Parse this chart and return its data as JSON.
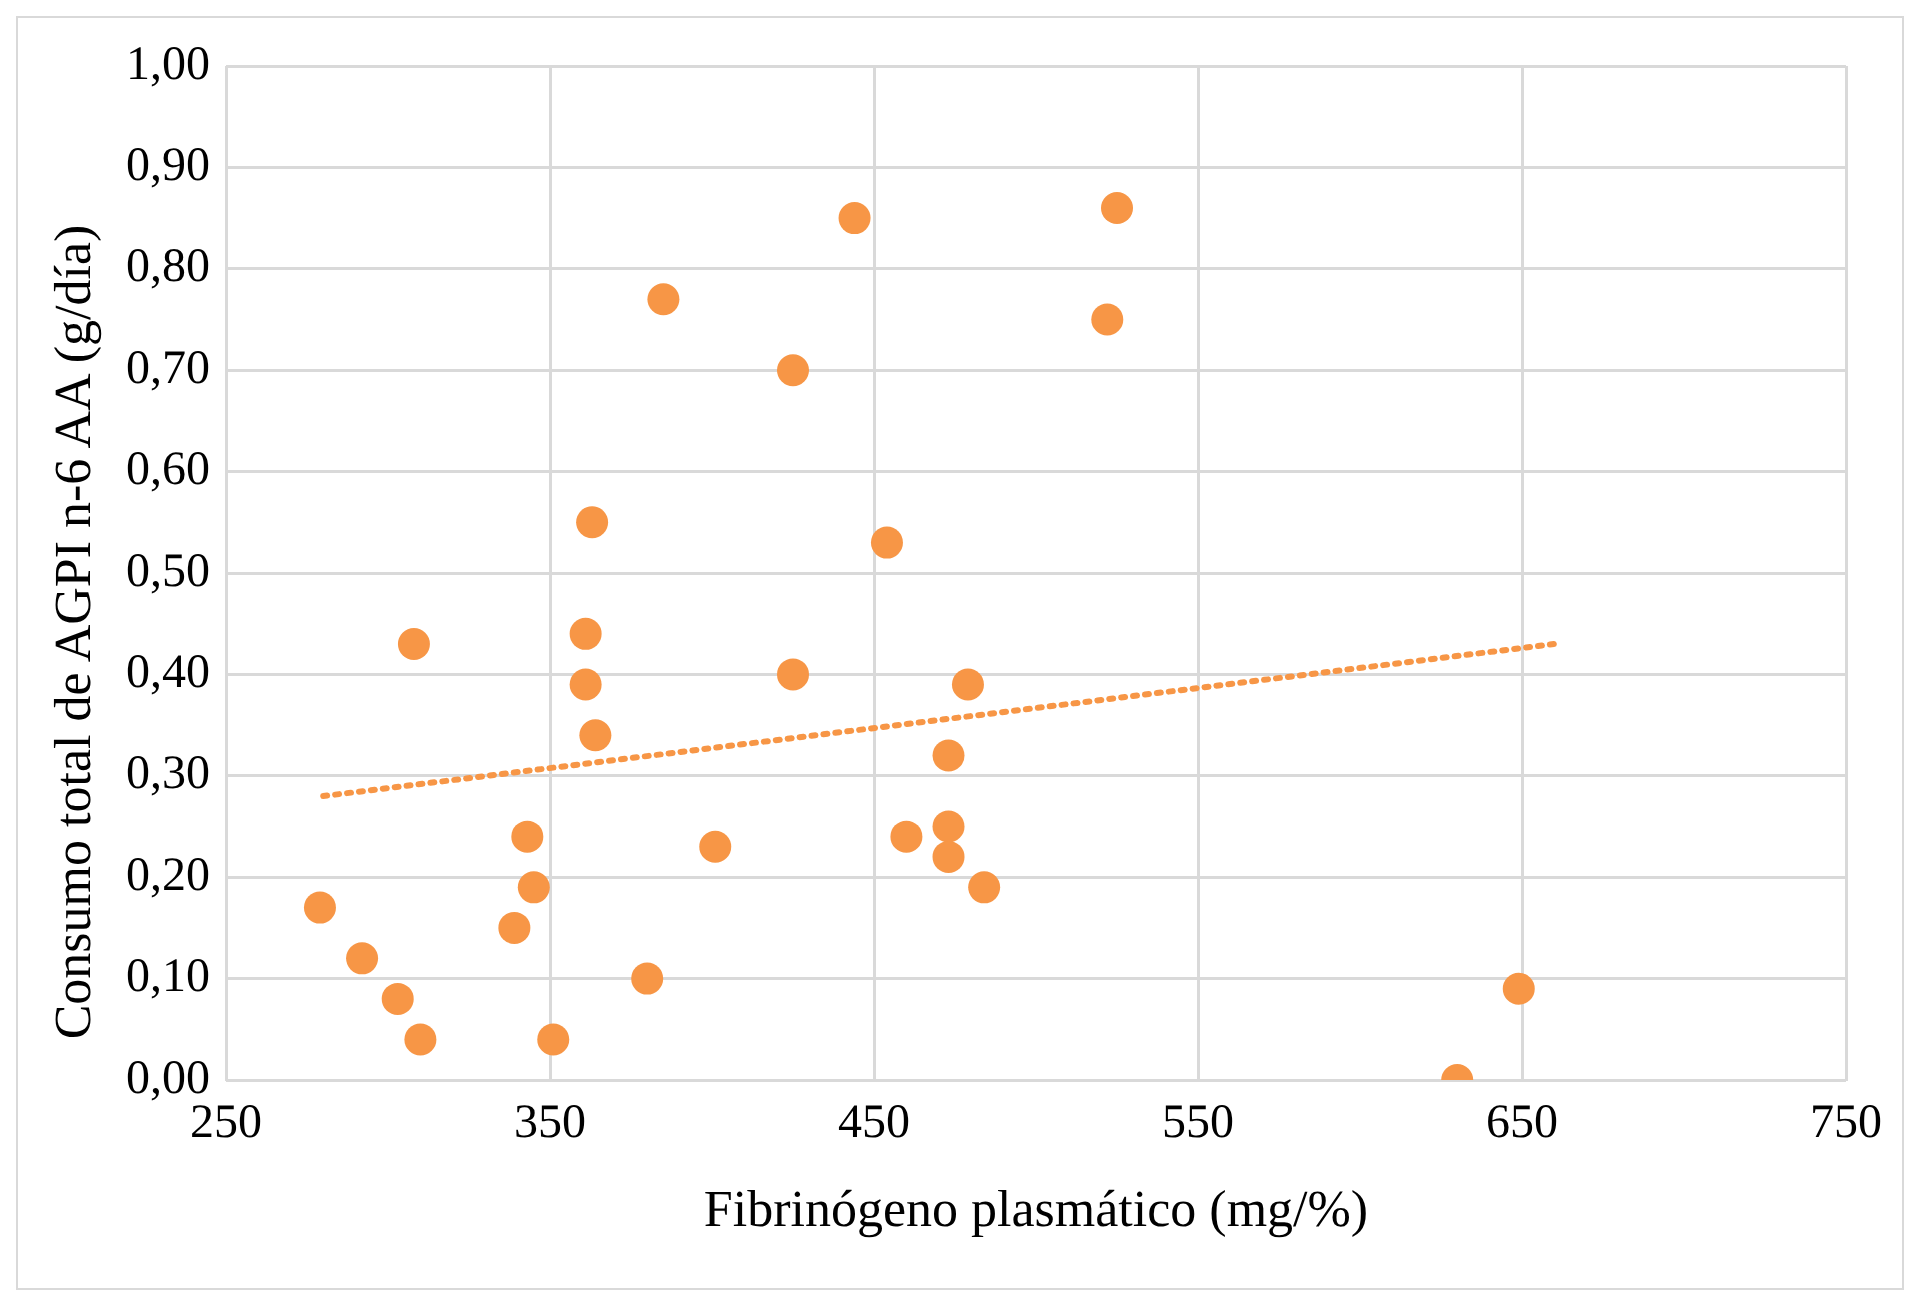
{
  "chart_data": {
    "type": "scatter",
    "xlabel": "Fibrinógeno plasmático (mg/%)",
    "ylabel": "Consumo total de AGPI n-6 AA (g/día)",
    "xlim": [
      250,
      750
    ],
    "xticks": [
      250,
      350,
      450,
      550,
      650,
      750
    ],
    "ylim": [
      0,
      1
    ],
    "yticks": [
      {
        "value": 0,
        "label": "0,00"
      },
      {
        "value": 0.1,
        "label": "0,10"
      },
      {
        "value": 0.2,
        "label": "0,20"
      },
      {
        "value": 0.3,
        "label": "0,30"
      },
      {
        "value": 0.4,
        "label": "0,40"
      },
      {
        "value": 0.5,
        "label": "0,50"
      },
      {
        "value": 0.6,
        "label": "0,60"
      },
      {
        "value": 0.7,
        "label": "0,70"
      },
      {
        "value": 0.8,
        "label": "0,80"
      },
      {
        "value": 0.9,
        "label": "0,90"
      },
      {
        "value": 1,
        "label": "1,00"
      }
    ],
    "grid": true,
    "legend": false,
    "series": [
      {
        "type": "scatter",
        "color": "#f79646",
        "marker": "circle",
        "x": [
          279,
          292,
          303,
          310,
          308,
          339,
          343,
          345,
          351,
          361,
          361,
          363,
          364,
          380,
          385,
          401,
          425,
          425,
          444,
          454,
          460,
          473,
          473,
          473,
          479,
          484,
          522,
          525,
          630,
          649
        ],
        "values": [
          0.17,
          0.12,
          0.08,
          0.04,
          0.43,
          0.15,
          0.24,
          0.19,
          0.04,
          0.44,
          0.39,
          0.55,
          0.34,
          0.1,
          0.77,
          0.23,
          0.7,
          0.4,
          0.85,
          0.53,
          0.24,
          0.32,
          0.25,
          0.22,
          0.39,
          0.19,
          0.75,
          0.86,
          0.0,
          0.09
        ]
      },
      {
        "type": "line",
        "color": "#f79646",
        "marker": "none",
        "line_style": "dotted",
        "x": [
          280,
          660
        ],
        "values": [
          0.28,
          0.43
        ]
      }
    ]
  }
}
